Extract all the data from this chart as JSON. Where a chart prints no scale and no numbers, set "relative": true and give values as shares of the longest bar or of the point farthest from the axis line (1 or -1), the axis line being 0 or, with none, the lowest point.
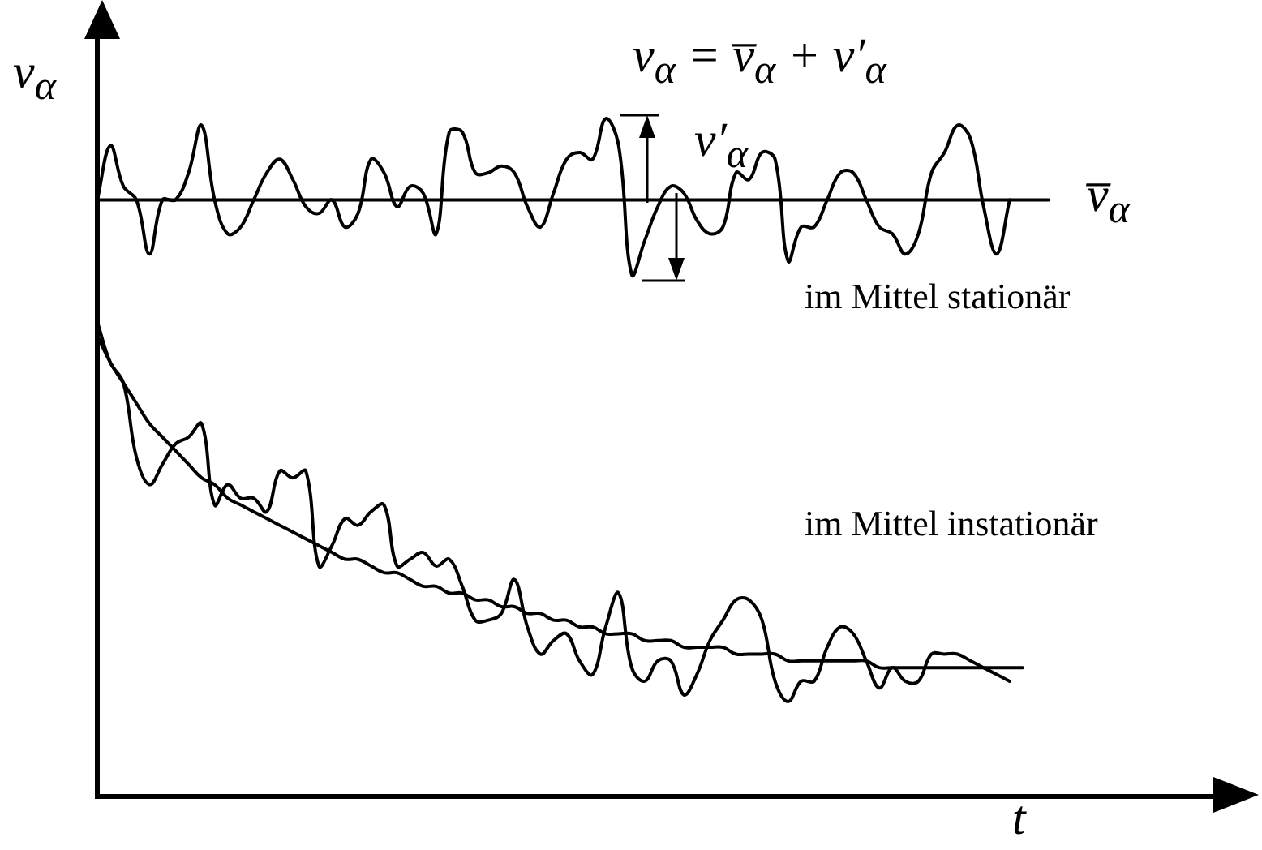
{
  "chart_data": {
    "type": "line",
    "relative": true,
    "xlabel": "t",
    "ylabel": "v$_{α}$",
    "legend": false,
    "grid": false,
    "marker": "none",
    "line_style": "solid",
    "annotations": [
      "v$_{α}$ = v̅$_{α}$ + v′$_{α}$",
      "v′$_{α}$",
      "v̅$_{α}$",
      "im Mittel stationär",
      "im Mittel instationär"
    ],
    "categories": [
      null,
      null,
      null,
      null,
      null,
      null,
      null,
      null,
      null,
      null,
      null,
      null,
      null,
      null,
      null,
      null,
      null,
      null,
      null,
      null,
      null,
      null,
      null,
      null,
      null,
      null,
      null,
      null,
      null,
      null,
      null,
      null,
      null,
      null,
      null,
      null,
      null,
      null,
      null,
      null,
      null,
      null,
      null,
      null,
      null,
      null,
      null,
      null,
      null,
      null,
      null,
      null,
      null,
      null,
      null,
      null,
      null,
      null,
      null,
      null,
      null,
      null,
      null,
      null,
      null,
      null,
      null,
      null,
      null,
      null,
      null,
      null,
      null,
      null,
      null,
      null,
      null,
      null,
      null,
      null,
      null,
      null,
      null,
      null,
      null,
      null,
      null
    ],
    "series": [
      {
        "color": "#000000",
        "values": [
          0.88,
          0.96,
          0.9,
          0.88,
          0.8,
          0.88,
          0.88,
          0.92,
          0.99,
          0.88,
          0.83,
          0.84,
          0.88,
          0.92,
          0.94,
          0.91,
          0.87,
          0.86,
          0.88,
          0.84,
          0.86,
          0.94,
          0.92,
          0.87,
          0.9,
          0.89,
          0.83,
          0.98,
          0.98,
          0.92,
          0.92,
          0.93,
          0.92,
          0.87,
          0.84,
          0.89,
          0.94,
          0.95,
          0.94,
          1,
          0.96,
          0.77,
          0.82,
          0.87,
          0.9,
          0.89,
          0.85,
          0.83,
          0.84,
          0.92,
          0.91,
          0.95,
          0.94,
          0.79,
          0.84,
          0.84,
          0.88,
          0.92,
          0.92,
          0.88,
          0.84,
          0.83,
          0.8,
          0.83,
          0.92,
          0.95,
          0.99,
          0.97,
          0.87,
          0.8,
          0.88,
          null,
          null,
          null,
          null,
          null,
          null,
          null,
          null,
          null,
          null,
          null,
          null,
          null,
          null,
          null,
          null
        ]
      },
      {
        "color": "#000000",
        "values": [
          0.88,
          0.88,
          0.88,
          0.88,
          0.88,
          0.88,
          0.88,
          0.88,
          0.88,
          0.88,
          0.88,
          0.88,
          0.88,
          0.88,
          0.88,
          0.88,
          0.88,
          0.88,
          0.88,
          0.88,
          0.88,
          0.88,
          0.88,
          0.88,
          0.88,
          0.88,
          0.88,
          0.88,
          0.88,
          0.88,
          0.88,
          0.88,
          0.88,
          0.88,
          0.88,
          0.88,
          0.88,
          0.88,
          0.88,
          0.88,
          0.88,
          0.88,
          0.88,
          0.88,
          0.88,
          0.88,
          0.88,
          0.88,
          0.88,
          0.88,
          0.88,
          0.88,
          0.88,
          0.88,
          0.88,
          0.88,
          0.88,
          0.88,
          0.88,
          0.88,
          0.88,
          0.88,
          0.88,
          0.88,
          0.88,
          0.88,
          0.88,
          0.88,
          0.88,
          0.88,
          0.88,
          0.88,
          0.88,
          0.88,
          null,
          null,
          null,
          null,
          null,
          null,
          null,
          null,
          null,
          null,
          null,
          null,
          null
        ]
      },
      {
        "color": "#000000",
        "values": [
          0.7,
          0.64,
          0.61,
          0.5,
          0.46,
          0.49,
          0.52,
          0.53,
          0.55,
          0.43,
          0.46,
          0.44,
          0.44,
          0.42,
          0.48,
          0.47,
          0.48,
          0.34,
          0.37,
          0.41,
          0.4,
          0.42,
          0.43,
          0.34,
          0.35,
          0.36,
          0.34,
          0.35,
          0.31,
          0.26,
          0.26,
          0.27,
          0.32,
          0.25,
          0.21,
          0.23,
          0.24,
          0.2,
          0.18,
          0.25,
          0.3,
          0.19,
          0.17,
          0.2,
          0.2,
          0.15,
          0.18,
          0.23,
          0.26,
          0.29,
          0.29,
          0.26,
          0.17,
          0.14,
          0.17,
          0.17,
          0.22,
          0.25,
          0.24,
          0.2,
          0.16,
          0.19,
          0.17,
          0.17,
          0.21,
          0.21,
          0.21,
          0.2,
          0.19,
          0.18,
          0.17,
          null,
          null,
          null,
          null,
          null,
          null,
          null,
          null,
          null,
          null,
          null,
          null,
          null,
          null,
          null,
          null
        ]
      },
      {
        "color": "#000000",
        "values": [
          0.68,
          0.64,
          0.61,
          0.58,
          0.55,
          0.53,
          0.51,
          0.49,
          0.47,
          0.46,
          0.44,
          0.43,
          0.42,
          0.41,
          0.4,
          0.39,
          0.38,
          0.37,
          0.36,
          0.35,
          0.35,
          0.34,
          0.33,
          0.33,
          0.32,
          0.31,
          0.31,
          0.3,
          0.3,
          0.29,
          0.29,
          0.28,
          0.28,
          0.27,
          0.27,
          0.26,
          0.26,
          0.25,
          0.25,
          0.24,
          0.24,
          0.24,
          0.23,
          0.23,
          0.23,
          0.22,
          0.22,
          0.22,
          0.22,
          0.21,
          0.21,
          0.21,
          0.21,
          0.2,
          0.2,
          0.2,
          0.2,
          0.2,
          0.2,
          0.2,
          0.19,
          0.19,
          0.19,
          0.19,
          0.19,
          0.19,
          0.19,
          0.19,
          0.19,
          0.19,
          0.19,
          0.19,
          null,
          null,
          null,
          null,
          null,
          null,
          null,
          null,
          null,
          null,
          null,
          null,
          null,
          null,
          null
        ]
      }
    ]
  }
}
